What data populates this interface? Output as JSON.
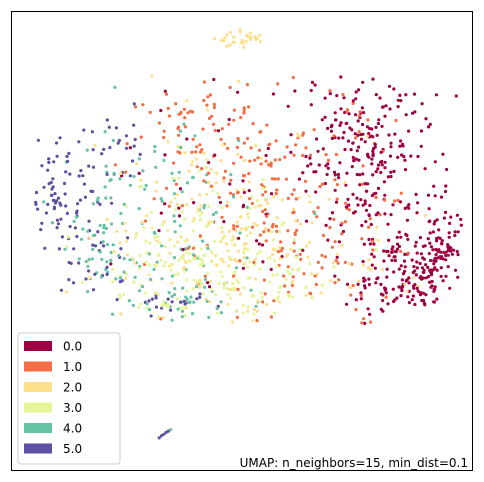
{
  "chart_data": {
    "type": "scatter",
    "title": "",
    "xlabel": "",
    "ylabel": "",
    "axis_ticks_visible": false,
    "grid": false,
    "legend": {
      "placement": "bottom-left",
      "entries": [
        {
          "label": "0.0",
          "color": "#9e0142"
        },
        {
          "label": "1.0",
          "color": "#f46d43"
        },
        {
          "label": "2.0",
          "color": "#fee08b"
        },
        {
          "label": "3.0",
          "color": "#e6f598"
        },
        {
          "label": "4.0",
          "color": "#66c2a5"
        },
        {
          "label": "5.0",
          "color": "#5e4fa2"
        }
      ]
    },
    "annotation": "UMAP: n_neighbors=15, min_dist=0.1",
    "clusters": [
      {
        "category": "0.0",
        "center": [
          0.78,
          0.7
        ],
        "spread": [
          0.07,
          0.1
        ],
        "count": 230
      },
      {
        "category": "0.0",
        "center": [
          0.85,
          0.42
        ],
        "spread": [
          0.06,
          0.05
        ],
        "count": 160
      },
      {
        "category": "0.0",
        "center": [
          0.93,
          0.48
        ],
        "spread": [
          0.025,
          0.04
        ],
        "count": 70
      },
      {
        "category": "0.0",
        "center": [
          0.55,
          0.6
        ],
        "spread": [
          0.15,
          0.12
        ],
        "count": 70
      },
      {
        "category": "1.0",
        "center": [
          0.55,
          0.62
        ],
        "spread": [
          0.14,
          0.12
        ],
        "count": 180
      },
      {
        "category": "1.0",
        "center": [
          0.65,
          0.45
        ],
        "spread": [
          0.1,
          0.08
        ],
        "count": 60
      },
      {
        "category": "1.0",
        "center": [
          0.42,
          0.75
        ],
        "spread": [
          0.08,
          0.05
        ],
        "count": 40
      },
      {
        "category": "2.0",
        "center": [
          0.45,
          0.52
        ],
        "spread": [
          0.13,
          0.12
        ],
        "count": 180
      },
      {
        "category": "2.0",
        "center": [
          0.5,
          0.94
        ],
        "spread": [
          0.025,
          0.008
        ],
        "count": 25
      },
      {
        "category": "2.0",
        "center": [
          0.75,
          0.45
        ],
        "spread": [
          0.08,
          0.05
        ],
        "count": 30
      },
      {
        "category": "3.0",
        "center": [
          0.4,
          0.45
        ],
        "spread": [
          0.11,
          0.09
        ],
        "count": 170
      },
      {
        "category": "3.0",
        "center": [
          0.55,
          0.4
        ],
        "spread": [
          0.08,
          0.06
        ],
        "count": 50
      },
      {
        "category": "4.0",
        "center": [
          0.3,
          0.55
        ],
        "spread": [
          0.1,
          0.12
        ],
        "count": 90
      },
      {
        "category": "4.0",
        "center": [
          0.2,
          0.45
        ],
        "spread": [
          0.05,
          0.06
        ],
        "count": 40
      },
      {
        "category": "4.0",
        "center": [
          0.4,
          0.38
        ],
        "spread": [
          0.06,
          0.04
        ],
        "count": 40
      },
      {
        "category": "5.0",
        "center": [
          0.1,
          0.62
        ],
        "spread": [
          0.04,
          0.06
        ],
        "count": 60
      },
      {
        "category": "5.0",
        "center": [
          0.17,
          0.48
        ],
        "spread": [
          0.05,
          0.06
        ],
        "count": 40
      },
      {
        "category": "5.0",
        "center": [
          0.35,
          0.36
        ],
        "spread": [
          0.04,
          0.01
        ],
        "count": 20
      },
      {
        "category": "5.0",
        "center": [
          0.23,
          0.7
        ],
        "spread": [
          0.04,
          0.04
        ],
        "count": 25
      }
    ],
    "strays": [
      {
        "category": "5.0",
        "points": [
          [
            0.32,
            0.07
          ],
          [
            0.325,
            0.075
          ],
          [
            0.33,
            0.078
          ],
          [
            0.335,
            0.082
          ],
          [
            0.34,
            0.085
          ]
        ]
      },
      {
        "category": "4.0",
        "points": [
          [
            0.345,
            0.088
          ]
        ]
      },
      {
        "category": "2.0",
        "points": [
          [
            0.53,
            0.94
          ],
          [
            0.52,
            0.945
          ],
          [
            0.54,
            0.935
          ]
        ]
      },
      {
        "category": "0.0",
        "points": [
          [
            0.97,
            0.52
          ],
          [
            0.96,
            0.48
          ],
          [
            0.94,
            0.55
          ],
          [
            0.92,
            0.4
          ]
        ]
      }
    ]
  }
}
